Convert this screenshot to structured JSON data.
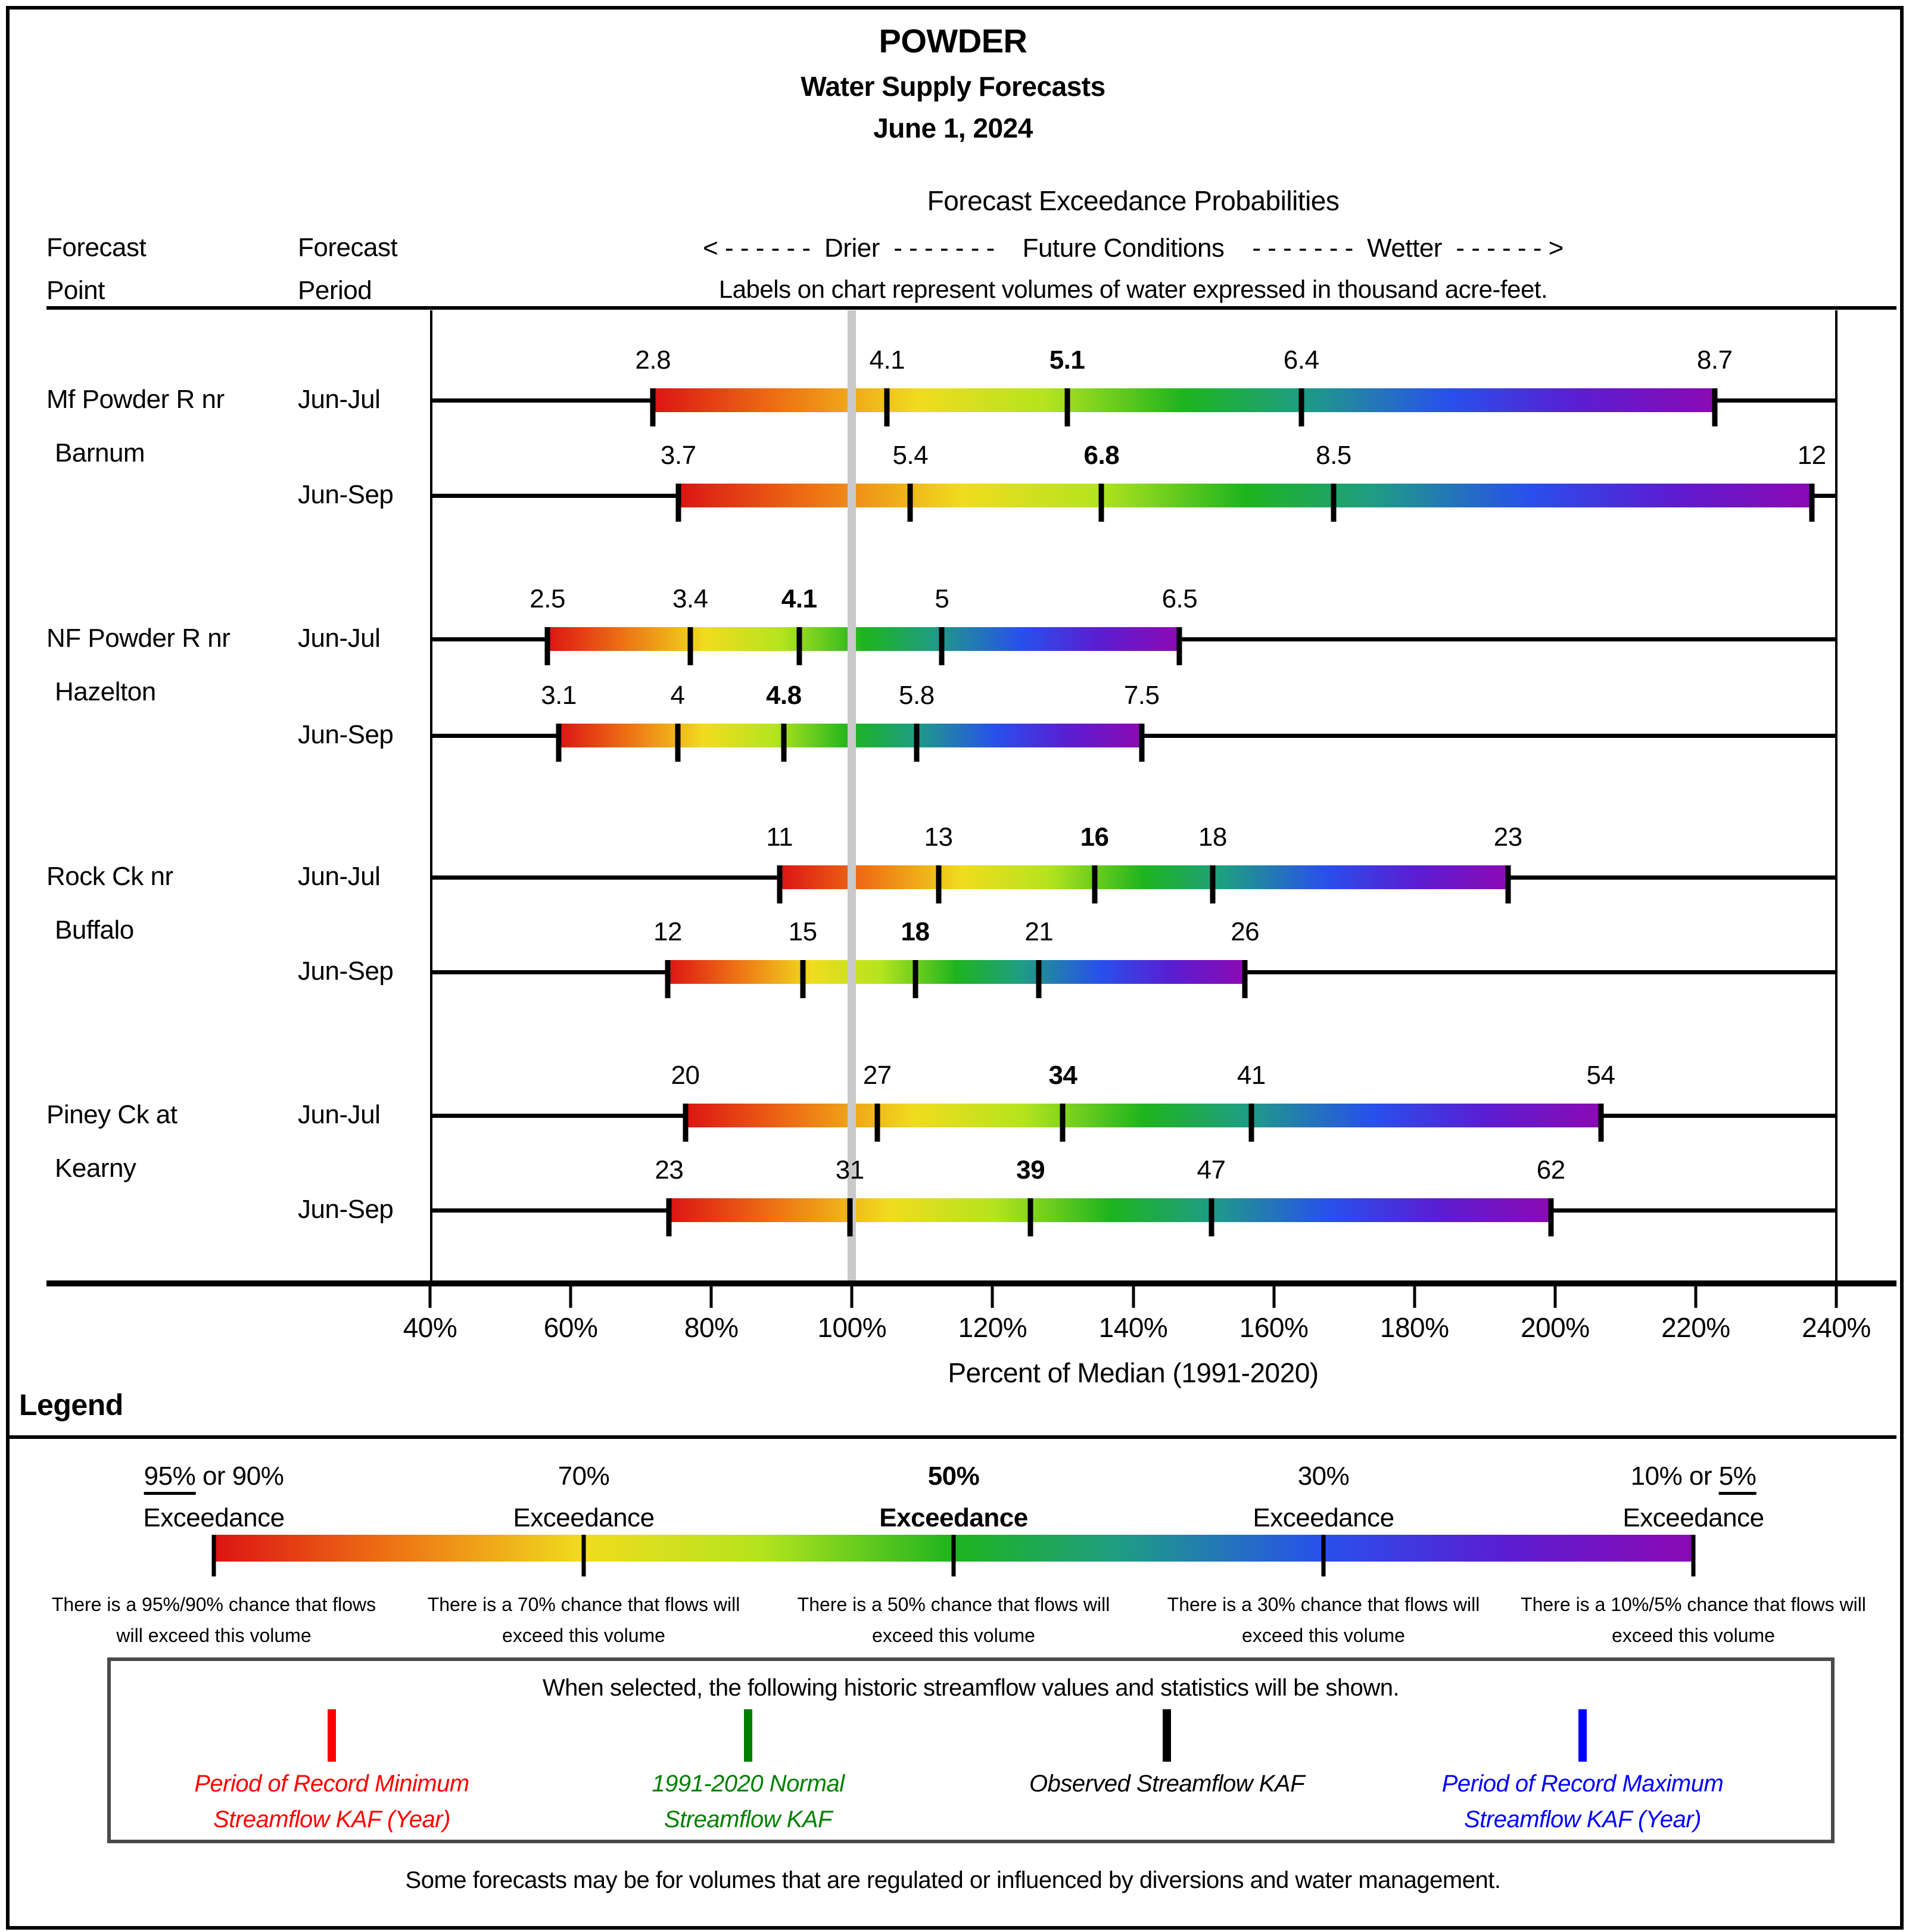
{
  "title": {
    "basin": "POWDER",
    "subtitle": "Water Supply Forecasts",
    "date": "June 1, 2024"
  },
  "columns": {
    "point": "Forecast\nPoint",
    "period": "Forecast\nPeriod"
  },
  "header": {
    "heading": "Forecast Exceedance Probabilities",
    "direction_line": "< - - - - - -  Drier  - - - - - - -    Future Conditions    - - - - - - -  Wetter  - - - - - - >",
    "note": "Labels on chart represent volumes of water expressed in thousand acre-feet."
  },
  "chart_data": {
    "type": "range-bar",
    "title": "POWDER Water Supply Forecasts, June 1, 2024",
    "unit": "thousand acre-feet (KAF)",
    "xlabel": "Percent of Median (1991-2020)",
    "x_axis": {
      "min": 40,
      "max": 240,
      "step": 20,
      "tick_labels": [
        "40%",
        "60%",
        "80%",
        "100%",
        "120%",
        "140%",
        "160%",
        "180%",
        "200%",
        "220%",
        "240%"
      ],
      "reference_line_pct": 100
    },
    "exceedance_levels": [
      "95%/90%",
      "70%",
      "50%",
      "30%",
      "10%/5%"
    ],
    "groups": [
      {
        "point_lines": [
          "Mf Powder R nr",
          "Barnum"
        ],
        "rows": [
          {
            "period": "Jun-Jul",
            "labels": [
              "2.8",
              "4.1",
              "5.1",
              "6.4",
              "8.7"
            ],
            "values": [
              2.8,
              4.1,
              5.1,
              6.4,
              8.7
            ],
            "pct": [
              71.7,
              105.0,
              130.6,
              163.9,
              222.7
            ]
          },
          {
            "period": "Jun-Sep",
            "labels": [
              "3.7",
              "5.4",
              "6.8",
              "8.5",
              "12"
            ],
            "values": [
              3.7,
              5.4,
              6.8,
              8.5,
              12
            ],
            "pct": [
              75.3,
              108.3,
              135.5,
              168.5,
              236.5
            ]
          }
        ]
      },
      {
        "point_lines": [
          "NF Powder R nr",
          "Hazelton"
        ],
        "rows": [
          {
            "period": "Jun-Jul",
            "labels": [
              "2.5",
              "3.4",
              "4.1",
              "5",
              "6.5"
            ],
            "values": [
              2.5,
              3.4,
              4.1,
              5,
              6.5
            ],
            "pct": [
              56.7,
              77.0,
              92.5,
              112.8,
              146.6
            ]
          },
          {
            "period": "Jun-Sep",
            "labels": [
              "3.1",
              "4",
              "4.8",
              "5.8",
              "7.5"
            ],
            "values": [
              3.1,
              4,
              4.8,
              5.8,
              7.5
            ],
            "pct": [
              58.3,
              75.2,
              90.3,
              109.2,
              141.2
            ]
          }
        ]
      },
      {
        "point_lines": [
          "Rock Ck nr",
          "Buffalo"
        ],
        "rows": [
          {
            "period": "Jun-Jul",
            "labels": [
              "11",
              "13",
              "16",
              "18",
              "23"
            ],
            "values": [
              11,
              13,
              16,
              18,
              23
            ],
            "pct": [
              89.7,
              112.3,
              134.5,
              151.3,
              193.3
            ]
          },
          {
            "period": "Jun-Sep",
            "labels": [
              "12",
              "15",
              "18",
              "21",
              "26"
            ],
            "values": [
              12,
              15,
              18,
              21,
              26
            ],
            "pct": [
              73.8,
              93.0,
              109.0,
              126.6,
              155.9
            ]
          }
        ]
      },
      {
        "point_lines": [
          "Piney Ck at",
          "Kearny"
        ],
        "rows": [
          {
            "period": "Jun-Jul",
            "labels": [
              "20",
              "27",
              "34",
              "41",
              "54"
            ],
            "values": [
              20,
              27,
              34,
              41,
              54
            ],
            "pct": [
              76.3,
              103.6,
              130.0,
              156.8,
              206.5
            ]
          },
          {
            "period": "Jun-Sep",
            "labels": [
              "23",
              "31",
              "39",
              "47",
              "62"
            ],
            "values": [
              23,
              31,
              39,
              47,
              62
            ],
            "pct": [
              74.0,
              99.7,
              125.4,
              151.1,
              199.4
            ]
          }
        ]
      }
    ],
    "gradient_stops": [
      "#dc1414 0%",
      "#ee7214 12%",
      "#f0dc1e 25%",
      "#b4e41e 37%",
      "#1eb41e 50%",
      "#1e9e82 61%",
      "#2850ec 75%",
      "#5a1ed2 87%",
      "#8c0ab4 100%"
    ],
    "reference_line_color": "#c9c9c9",
    "xlim": [
      40,
      240
    ],
    "legend_position": "bottom",
    "grid": false
  },
  "axis": {
    "label": "Percent of Median (1991-2020)"
  },
  "legend": {
    "heading": "Legend",
    "entries": [
      {
        "line1_parts": [
          {
            "text": "95%",
            "underline": true
          },
          {
            "text": " or 90%"
          }
        ],
        "line2": "Exceedance",
        "bold": false,
        "explanation": "There is a 95%/90% chance that flows will exceed this volume"
      },
      {
        "line1_parts": [
          {
            "text": "70%"
          }
        ],
        "line2": "Exceedance",
        "bold": false,
        "explanation": "There is a 70% chance that flows will exceed this volume"
      },
      {
        "line1_parts": [
          {
            "text": "50%"
          }
        ],
        "line2": "Exceedance",
        "bold": true,
        "explanation": "There is a 50% chance that flows will exceed this volume"
      },
      {
        "line1_parts": [
          {
            "text": "30%"
          }
        ],
        "line2": "Exceedance",
        "bold": false,
        "explanation": "There is a 30% chance that flows will exceed this volume"
      },
      {
        "line1_parts": [
          {
            "text": "10% or "
          },
          {
            "text": "5%",
            "underline": true
          }
        ],
        "line2": "Exceedance",
        "bold": false,
        "explanation": "There is a 10%/5% chance that flows will exceed this volume"
      }
    ]
  },
  "historic_box": {
    "title": "When selected, the following historic streamflow values and statistics will be shown.",
    "items": [
      {
        "color": "#ff0000",
        "lines": [
          "Period of Record Minimum",
          "Streamflow KAF (Year)"
        ]
      },
      {
        "color": "#008000",
        "lines": [
          "1991-2020 Normal",
          "Streamflow KAF"
        ]
      },
      {
        "color": "#000000",
        "lines": [
          "Observed Streamflow KAF"
        ]
      },
      {
        "color": "#0000ff",
        "lines": [
          "Period of Record Maximum",
          "Streamflow KAF (Year)"
        ]
      }
    ]
  },
  "footer": "Some forecasts may be for volumes that are regulated or influenced by diversions and water management."
}
